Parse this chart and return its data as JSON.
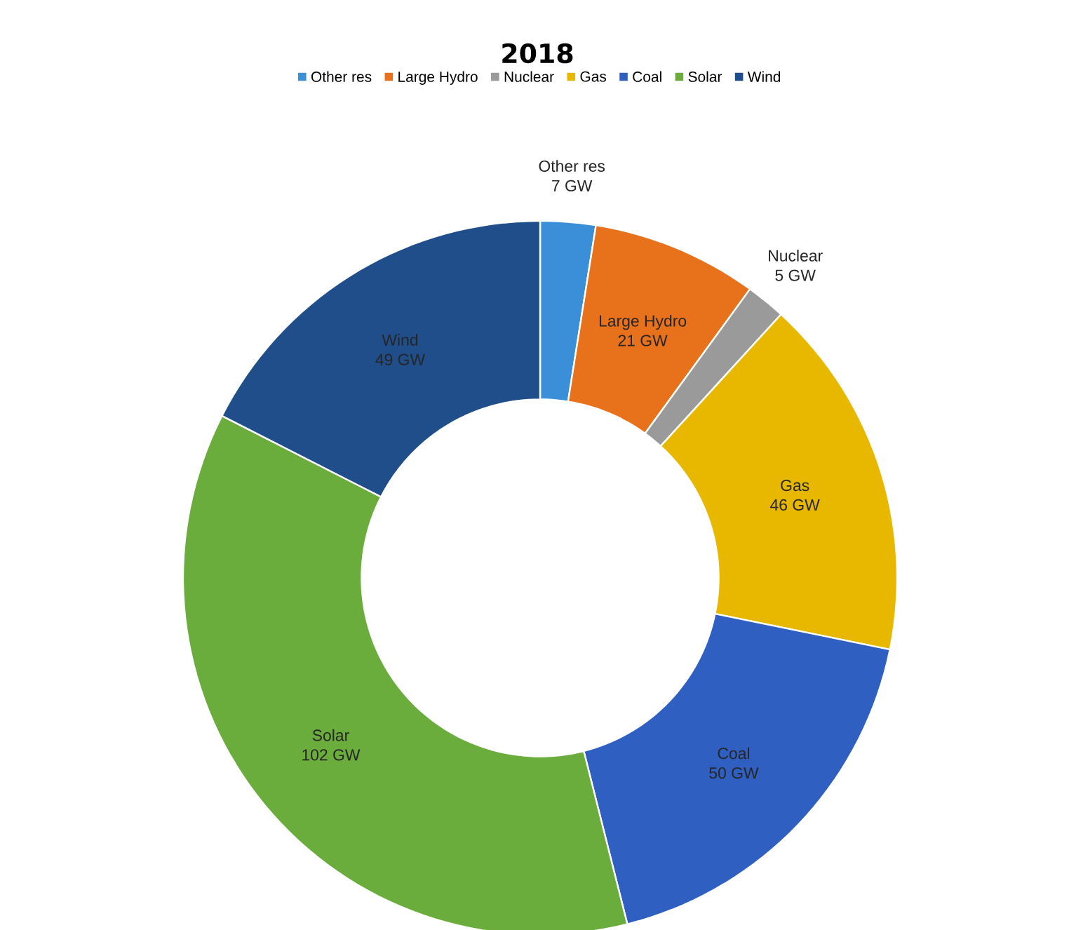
{
  "chart_data": {
    "type": "donut",
    "title": "2018",
    "categories": [
      "Other res",
      "Large Hydro",
      "Nuclear",
      "Gas",
      "Coal",
      "Solar",
      "Wind"
    ],
    "values": [
      7,
      21,
      5,
      46,
      50,
      102,
      49
    ],
    "value_labels": [
      "7 GW",
      "21 GW",
      "5 GW",
      "46 GW",
      "50 GW",
      "102 GW",
      "49 GW"
    ],
    "colors": [
      "#3a8fd8",
      "#e8711c",
      "#9a9a9a",
      "#e8b800",
      "#2f5fc0",
      "#6aad3d",
      "#1f4e8a"
    ],
    "legend": "top"
  }
}
